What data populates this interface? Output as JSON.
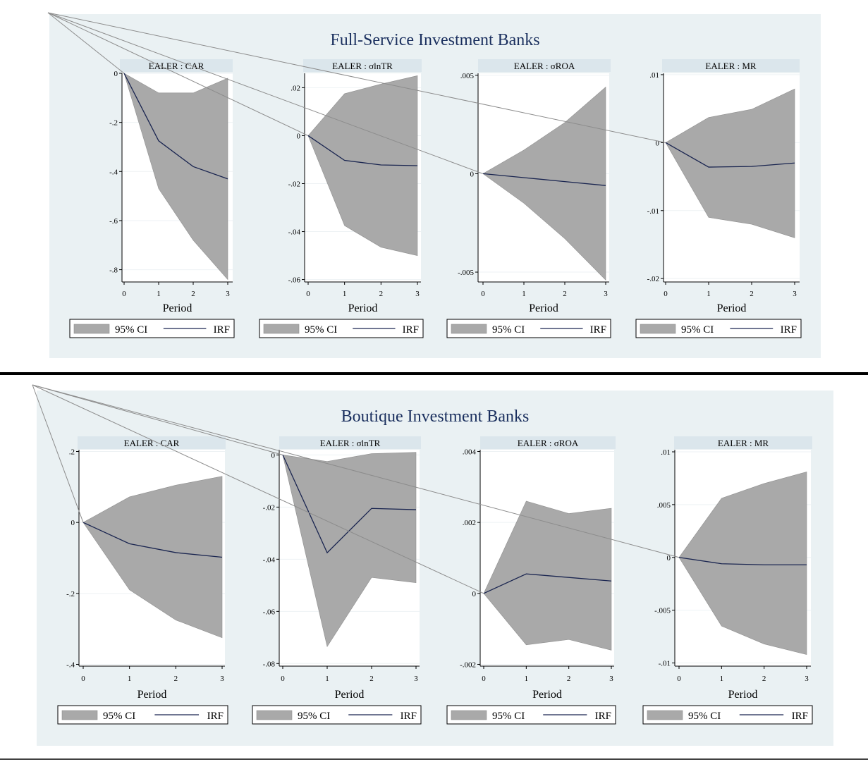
{
  "panels": [
    {
      "title": "Full-Service Investment Banks",
      "charts": [
        {
          "strip": "EALER : CAR",
          "xlabel": "Period",
          "ylim": [
            -0.85,
            0.0
          ],
          "yticks": [
            0,
            -0.2,
            -0.4,
            -0.6,
            -0.8
          ],
          "ytick_labels": [
            "0",
            "-.2",
            "-.4",
            "-.6",
            "-.8"
          ]
        },
        {
          "strip": "EALER : σlnTR",
          "xlabel": "Period",
          "ylim": [
            -0.061,
            0.026
          ],
          "yticks": [
            0.02,
            0,
            -0.02,
            -0.04,
            -0.06
          ],
          "ytick_labels": [
            ".02",
            "0",
            "-.02",
            "-.04",
            "-.06"
          ]
        },
        {
          "strip": "EALER : σROA",
          "xlabel": "Period",
          "ylim": [
            -0.0055,
            0.0051
          ],
          "yticks": [
            0.005,
            0,
            -0.005
          ],
          "ytick_labels": [
            ".005",
            "0",
            "-.005"
          ]
        },
        {
          "strip": "EALER : MR",
          "xlabel": "Period",
          "ylim": [
            -0.0205,
            0.0102
          ],
          "yticks": [
            0.01,
            0,
            -0.01,
            -0.02
          ],
          "ytick_labels": [
            ".01",
            "0",
            "-.01",
            "-.02"
          ]
        }
      ]
    },
    {
      "title": "Boutique Investment Banks",
      "charts": [
        {
          "strip": "EALER : CAR",
          "xlabel": "Period",
          "ylim": [
            -0.405,
            0.205
          ],
          "yticks": [
            0.2,
            0,
            -0.2,
            -0.4
          ],
          "ytick_labels": [
            ".2",
            "0",
            "-.2",
            "-.4"
          ]
        },
        {
          "strip": "EALER : σlnTR",
          "xlabel": "Period",
          "ylim": [
            -0.081,
            0.002
          ],
          "yticks": [
            0,
            -0.02,
            -0.04,
            -0.06,
            -0.08
          ],
          "ytick_labels": [
            "0",
            "-.02",
            "-.04",
            "-.06",
            "-.08"
          ]
        },
        {
          "strip": "EALER : σROA",
          "xlabel": "Period",
          "ylim": [
            -0.00205,
            0.00405
          ],
          "yticks": [
            0.004,
            0.002,
            0,
            -0.002
          ],
          "ytick_labels": [
            ".004",
            ".002",
            "0",
            "-.002"
          ]
        },
        {
          "strip": "EALER : MR",
          "xlabel": "Period",
          "ylim": [
            -0.0103,
            0.0102
          ],
          "yticks": [
            0.01,
            0.005,
            0,
            -0.005,
            -0.01
          ],
          "ytick_labels": [
            ".01",
            ".005",
            "0",
            "-.005",
            "-.01"
          ]
        }
      ]
    }
  ],
  "legend": {
    "ci_label": "95% CI",
    "irf_label": "IRF"
  },
  "colors": {
    "ci_fill": "#a9a9a9",
    "irf_line": "#1a2550",
    "panel_bg": "#eaf1f3",
    "strip_bg": "#dbe6ec",
    "title": "#1a2f5e"
  },
  "chart_data": [
    {
      "type": "area",
      "group": "Full-Service Investment Banks",
      "title": "EALER : CAR",
      "xlabel": "Period",
      "ylabel": "",
      "x": [
        0,
        1,
        2,
        3
      ],
      "ylim": [
        -0.85,
        0.0
      ],
      "series": [
        {
          "name": "95% CI",
          "lower": [
            0,
            -0.47,
            -0.68,
            -0.84
          ],
          "upper": [
            0,
            -0.08,
            -0.08,
            -0.02
          ]
        },
        {
          "name": "IRF",
          "values": [
            0,
            -0.275,
            -0.38,
            -0.43
          ]
        }
      ]
    },
    {
      "type": "area",
      "group": "Full-Service Investment Banks",
      "title": "EALER : σlnTR",
      "xlabel": "Period",
      "ylabel": "",
      "x": [
        0,
        1,
        2,
        3
      ],
      "ylim": [
        -0.061,
        0.026
      ],
      "series": [
        {
          "name": "95% CI",
          "lower": [
            0,
            -0.0375,
            -0.0465,
            -0.05
          ],
          "upper": [
            0,
            0.0175,
            0.0215,
            0.025
          ]
        },
        {
          "name": "IRF",
          "values": [
            0,
            -0.0103,
            -0.0122,
            -0.0125
          ]
        }
      ]
    },
    {
      "type": "area",
      "group": "Full-Service Investment Banks",
      "title": "EALER : σROA",
      "xlabel": "Period",
      "ylabel": "",
      "x": [
        0,
        1,
        2,
        3
      ],
      "ylim": [
        -0.0055,
        0.0051
      ],
      "series": [
        {
          "name": "95% CI",
          "lower": [
            0,
            -0.0015,
            -0.0033,
            -0.0054
          ],
          "upper": [
            0,
            0.0012,
            0.0026,
            0.0044
          ]
        },
        {
          "name": "IRF",
          "values": [
            0,
            -0.0002,
            -0.0004,
            -0.0006
          ]
        }
      ]
    },
    {
      "type": "area",
      "group": "Full-Service Investment Banks",
      "title": "EALER : MR",
      "xlabel": "Period",
      "ylabel": "",
      "x": [
        0,
        1,
        2,
        3
      ],
      "ylim": [
        -0.0205,
        0.0102
      ],
      "series": [
        {
          "name": "95% CI",
          "lower": [
            0,
            -0.011,
            -0.012,
            -0.014
          ],
          "upper": [
            0,
            0.0037,
            0.0049,
            0.0079
          ]
        },
        {
          "name": "IRF",
          "values": [
            0,
            -0.0036,
            -0.0035,
            -0.003
          ]
        }
      ]
    },
    {
      "type": "area",
      "group": "Boutique Investment Banks",
      "title": "EALER : CAR",
      "xlabel": "Period",
      "ylabel": "",
      "x": [
        0,
        1,
        2,
        3
      ],
      "ylim": [
        -0.405,
        0.205
      ],
      "series": [
        {
          "name": "95% CI",
          "lower": [
            0,
            -0.19,
            -0.275,
            -0.325
          ],
          "upper": [
            0,
            0.072,
            0.105,
            0.13
          ]
        },
        {
          "name": "IRF",
          "values": [
            0,
            -0.06,
            -0.085,
            -0.098
          ]
        }
      ]
    },
    {
      "type": "area",
      "group": "Boutique Investment Banks",
      "title": "EALER : σlnTR",
      "xlabel": "Period",
      "ylabel": "",
      "x": [
        0,
        1,
        2,
        3
      ],
      "ylim": [
        -0.081,
        0.002
      ],
      "series": [
        {
          "name": "95% CI",
          "lower": [
            0,
            -0.0735,
            -0.047,
            -0.049
          ],
          "upper": [
            0,
            -0.0025,
            0.0005,
            0.001
          ]
        },
        {
          "name": "IRF",
          "values": [
            0,
            -0.0375,
            -0.0205,
            -0.021
          ]
        }
      ]
    },
    {
      "type": "area",
      "group": "Boutique Investment Banks",
      "title": "EALER : σROA",
      "xlabel": "Period",
      "ylabel": "",
      "x": [
        0,
        1,
        2,
        3
      ],
      "ylim": [
        -0.00205,
        0.00405
      ],
      "series": [
        {
          "name": "95% CI",
          "lower": [
            0,
            -0.00145,
            -0.0013,
            -0.0016
          ],
          "upper": [
            0,
            0.0026,
            0.00225,
            0.0024
          ]
        },
        {
          "name": "IRF",
          "values": [
            0,
            0.00055,
            0.00045,
            0.00035
          ]
        }
      ]
    },
    {
      "type": "area",
      "group": "Boutique Investment Banks",
      "title": "EALER : MR",
      "xlabel": "Period",
      "ylabel": "",
      "x": [
        0,
        1,
        2,
        3
      ],
      "ylim": [
        -0.0103,
        0.0102
      ],
      "series": [
        {
          "name": "95% CI",
          "lower": [
            0,
            -0.0065,
            -0.0082,
            -0.0092
          ],
          "upper": [
            0,
            0.0056,
            0.007,
            0.0081
          ]
        },
        {
          "name": "IRF",
          "values": [
            0,
            -0.0006,
            -0.0007,
            -0.0007
          ]
        }
      ]
    }
  ]
}
